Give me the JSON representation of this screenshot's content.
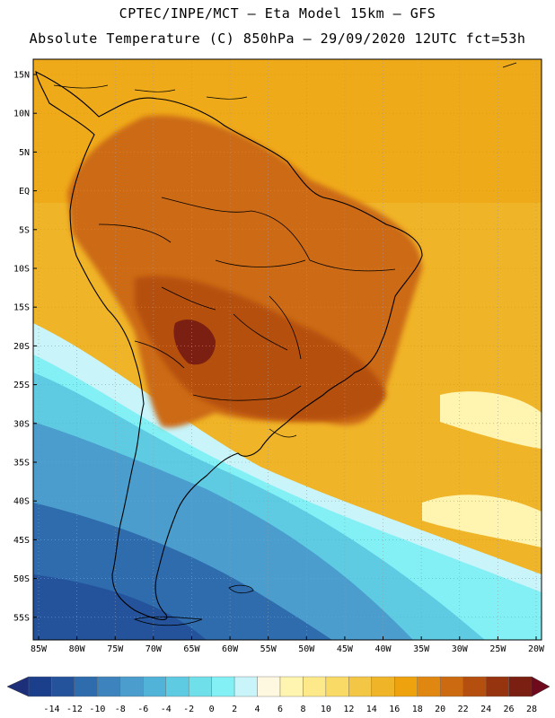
{
  "header": {
    "line1": "CPTEC/INPE/MCT —  Eta Model 15km — GFS",
    "line2": "Absolute Temperature (C) 850hPa — 29/09/2020 12UTC fct=53h"
  },
  "axes": {
    "lat_labels": [
      "15N",
      "10N",
      "5N",
      "EQ",
      "5S",
      "10S",
      "15S",
      "20S",
      "25S",
      "30S",
      "35S",
      "40S",
      "45S",
      "50S",
      "55S"
    ],
    "lon_labels": [
      "85W",
      "80W",
      "75W",
      "70W",
      "65W",
      "60W",
      "55W",
      "50W",
      "45W",
      "40W",
      "35W",
      "30W",
      "25W",
      "20W"
    ]
  },
  "legend": {
    "ticks": [
      "-14",
      "-12",
      "-10",
      "-8",
      "-6",
      "-4",
      "-2",
      "0",
      "2",
      "4",
      "6",
      "8",
      "10",
      "12",
      "14",
      "16",
      "18",
      "20",
      "22",
      "24",
      "26",
      "28"
    ],
    "colors": [
      "#1c3f8c",
      "#24539c",
      "#2f6cae",
      "#3d83bd",
      "#4a9dcc",
      "#52b3d8",
      "#5ecbe3",
      "#6fdfea",
      "#82f0f4",
      "#c8f4fa",
      "#fff8e0",
      "#fff4b0",
      "#fde98a",
      "#f9da66",
      "#f4c646",
      "#f0b428",
      "#eea20e",
      "#e08712",
      "#cc6a12",
      "#b54f10",
      "#96340f",
      "#7a1f12"
    ],
    "left_arrow_color": "#1e2f7a",
    "right_arrow_color": "#6e0a1c"
  },
  "colors": {
    "ocean_warm": "#f0b428",
    "land_hot": "#cc6a12",
    "core_hot": "#7a1f12",
    "cold_south": "#24539c"
  }
}
